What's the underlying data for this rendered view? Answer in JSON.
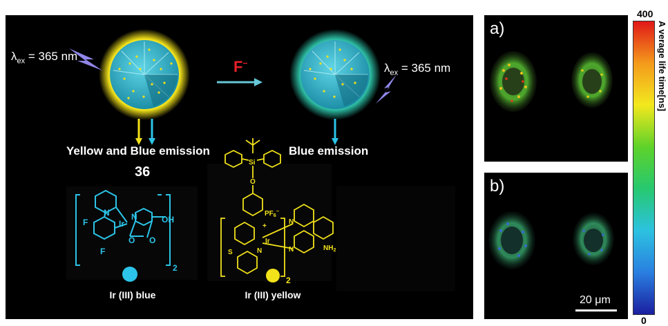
{
  "scheme": {
    "excitation_left": {
      "lambda": "λ",
      "sub": "ex",
      "value": " = 365 nm"
    },
    "excitation_right": {
      "lambda": "λ",
      "sub": "ex",
      "value": " = 365 nm"
    },
    "analyte": {
      "symbol": "F",
      "charge": "−"
    },
    "emission_left": "Yellow and Blue emission",
    "emission_right": "Blue emission",
    "compound_number": "36",
    "complex_blue_label": "Ir (III) blue",
    "complex_yellow_label": "Ir (III) yellow",
    "colors": {
      "yellow": "#f2e21a",
      "blue": "#2cc4e8",
      "teal": "#2ab9a0",
      "red": "#e8202a"
    },
    "structure_text": {
      "blue_F_top": "F",
      "blue_F_bottom": "F",
      "blue_Ir": "Ir",
      "blue_OH": "OH",
      "blue_N1": "N",
      "blue_N2": "N",
      "blue_O1": "O",
      "blue_O2": "O",
      "blue_sub": "2",
      "yellow_Si": "Si",
      "yellow_O": "O",
      "yellow_PF6": "PF",
      "yellow_PF6_sub": "6",
      "yellow_PF6_sup": "−",
      "yellow_plus": "+",
      "yellow_S": "S",
      "yellow_N1": "N",
      "yellow_Ir": "Ir",
      "yellow_N2": "N",
      "yellow_N3": "N",
      "yellow_NH2": "NH",
      "yellow_NH2_sub": "2",
      "yellow_sub": "2"
    }
  },
  "micrographs": {
    "panel_a_label": "a)",
    "panel_b_label": "b)",
    "scale_bar_label": "20 μm"
  },
  "colorbar": {
    "max_label": "400",
    "min_label": "0",
    "title": "A verage life time[ns]",
    "colors": [
      "#1b1fa0",
      "#2a7fe0",
      "#2cc2e0",
      "#27c870",
      "#5ed22a",
      "#f3e81e",
      "#f49a1c",
      "#e01818"
    ]
  }
}
